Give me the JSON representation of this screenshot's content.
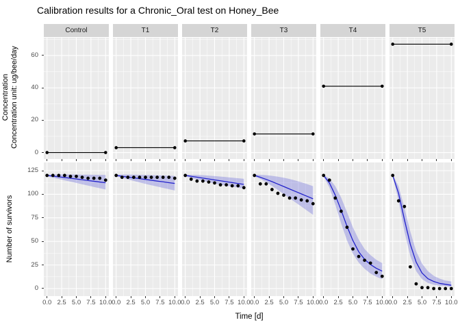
{
  "title": "Calibration results for a Chronic_Oral test on Honey_Bee",
  "axes": {
    "x_label": "Time [d]",
    "x_tick_labels": [
      "0.0",
      "2.5",
      "5.0",
      "7.5",
      "10.0"
    ],
    "top_y_label_line1": "Concentration",
    "top_y_label_line2": "Concentration unit: ug/bee/day",
    "top_y_tick_labels": [
      "0",
      "20",
      "40",
      "60"
    ],
    "bottom_y_label": "Number of survivors",
    "bottom_y_tick_labels": [
      "0",
      "25",
      "50",
      "75",
      "100",
      "125"
    ]
  },
  "colors": {
    "panel_bg": "#EBEBEB",
    "strip_bg": "#D5D5D5",
    "grid": "#FFFFFF",
    "point": "#000000",
    "model_line": "#2222CB",
    "ribbon": "rgba(99,99,216,0.34)",
    "obs_line": "#000000",
    "axis_text": "#4d4d4d"
  },
  "chart_data": {
    "type": "line",
    "title": "Calibration results for a Chronic_Oral test on Honey_Bee",
    "xlabel": "Time [d]",
    "facets": [
      "Control",
      "T1",
      "T2",
      "T3",
      "T4",
      "T5"
    ],
    "x": [
      0,
      1,
      2,
      3,
      4,
      5,
      6,
      7,
      8,
      9,
      10
    ],
    "x_ticks": [
      0,
      2.5,
      5,
      7.5,
      10
    ],
    "x_minor_ticks": [
      1.25,
      3.75,
      6.25,
      8.75
    ],
    "xlim": [
      0,
      10
    ],
    "grid": true,
    "legend_position": "none",
    "top_row": {
      "ylabel": "Concentration unit: ug/bee/day",
      "y_ticks": [
        0,
        20,
        40,
        60
      ],
      "y_minor_ticks": [
        10,
        30,
        50,
        70
      ],
      "ylim": [
        0,
        70
      ],
      "description": "constant exposure concentration per treatment, horizontal segment from t=0 to t=10 with end dots",
      "concentration": [
        0,
        3,
        7.2,
        11.5,
        41,
        67
      ]
    },
    "bottom_row": {
      "ylabel": "Number of survivors",
      "y_ticks": [
        0,
        25,
        50,
        75,
        100,
        125
      ],
      "y_minor_ticks": [
        12.5,
        37.5,
        62.5,
        87.5,
        112.5
      ],
      "ylim": [
        0,
        125
      ],
      "series": [
        {
          "facet": "Control",
          "observed": [
            120,
            120,
            120,
            120,
            119,
            119,
            118,
            117,
            117,
            117,
            115
          ],
          "model": [
            120,
            119.2,
            118.5,
            117.8,
            117,
            116.2,
            115.4,
            114.6,
            113.8,
            113,
            112.2
          ],
          "ribbon_low": [
            119,
            117.6,
            116.2,
            114.8,
            113.4,
            112,
            110.6,
            109.2,
            107.8,
            106.4,
            105
          ],
          "ribbon_high": [
            120.8,
            120.9,
            121,
            121,
            121,
            120.9,
            120.8,
            120.8,
            120.7,
            120.6,
            120.5
          ]
        },
        {
          "facet": "T1",
          "observed": [
            120,
            118,
            118,
            118,
            118,
            118,
            118,
            118,
            118,
            118,
            117
          ],
          "model": [
            120,
            119.1,
            118.3,
            117.4,
            116.6,
            115.7,
            114.9,
            114,
            113.2,
            112.3,
            111.5
          ],
          "ribbon_low": [
            119,
            117.4,
            115.8,
            114.2,
            112.6,
            111,
            109.6,
            108.2,
            106.8,
            105.4,
            104
          ],
          "ribbon_high": [
            120.8,
            120.9,
            120.9,
            120.8,
            120.7,
            120.5,
            120.3,
            120.1,
            119.9,
            119.7,
            119.5
          ]
        },
        {
          "facet": "T2",
          "observed": [
            120,
            116,
            114,
            114,
            113,
            112,
            110,
            110,
            109,
            109,
            107
          ],
          "model": [
            120,
            119,
            118.1,
            117.1,
            116.2,
            115.2,
            114.3,
            113.3,
            112.4,
            111.4,
            110.5
          ],
          "ribbon_low": [
            119,
            117.3,
            115.6,
            114.2,
            112.8,
            111.4,
            110.2,
            109,
            108,
            107,
            106
          ],
          "ribbon_high": [
            120.8,
            120.7,
            120.5,
            120.2,
            119.8,
            119.3,
            118.8,
            118.2,
            117.6,
            117,
            116.4
          ]
        },
        {
          "facet": "T3",
          "observed": [
            120,
            111,
            111,
            105,
            101,
            99,
            96,
            96,
            94,
            93,
            90
          ],
          "model": [
            120,
            118,
            115.8,
            113.4,
            110.8,
            108.2,
            105.6,
            103,
            100.4,
            97.8,
            95.2
          ],
          "ribbon_low": [
            119,
            116.3,
            112.8,
            108.8,
            104.6,
            100.2,
            95.8,
            91.4,
            87,
            82.6,
            78.2
          ],
          "ribbon_high": [
            120.8,
            120.6,
            120.2,
            119.6,
            118.7,
            117.6,
            116.2,
            114.6,
            112.8,
            110.8,
            108.6
          ]
        },
        {
          "facet": "T4",
          "observed": [
            120,
            115,
            96,
            82,
            65,
            42,
            34,
            30,
            27,
            17,
            13
          ],
          "model": [
            120,
            112,
            99,
            83,
            66,
            51,
            39,
            31,
            25.5,
            21.5,
            18.5
          ],
          "ribbon_low": [
            119,
            107,
            89,
            69,
            51,
            37,
            27.5,
            21,
            16,
            12.5,
            10
          ],
          "ribbon_high": [
            120.8,
            116.5,
            108.5,
            96.5,
            81,
            65,
            52,
            42,
            35.5,
            30.5,
            27
          ]
        },
        {
          "facet": "T5",
          "observed": [
            120,
            93,
            87,
            23,
            5,
            1,
            1,
            0,
            0,
            0,
            0
          ],
          "model": [
            120,
            101,
            73,
            47,
            28,
            16.5,
            10.5,
            7.5,
            5.5,
            4.5,
            3.5
          ],
          "ribbon_low": [
            119,
            93,
            60.5,
            34.5,
            18.5,
            10,
            6,
            4,
            3,
            2.5,
            2
          ],
          "ribbon_high": [
            120.8,
            108.5,
            85.5,
            60.5,
            39.5,
            26.5,
            18.5,
            13.5,
            10.5,
            8.5,
            7.5
          ]
        }
      ]
    }
  }
}
